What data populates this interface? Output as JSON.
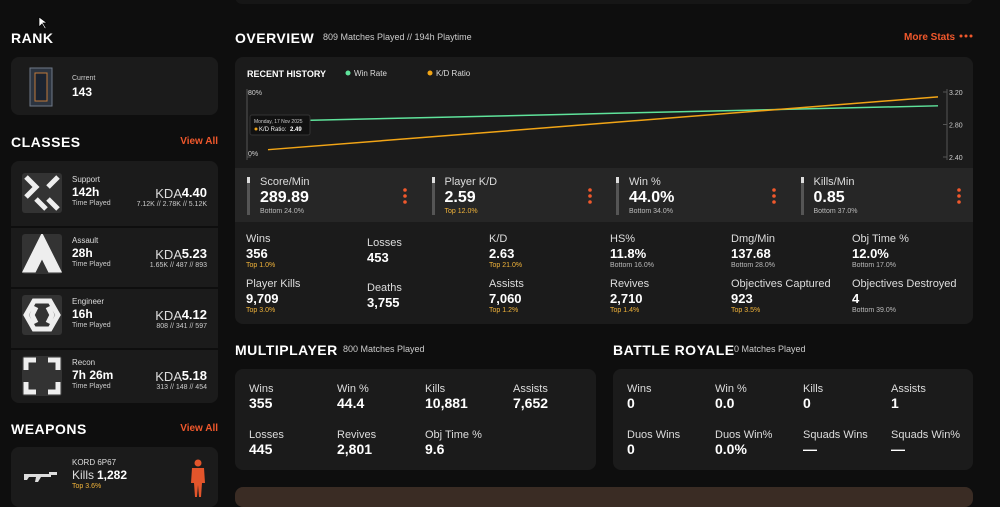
{
  "rank": {
    "title": "RANK",
    "label": "Current",
    "value": "143"
  },
  "classes": {
    "title": "CLASSES",
    "view_all": "View All",
    "items": [
      {
        "name": "Support",
        "time": "142h",
        "time_label": "Time Played",
        "kda_label": "KDA",
        "kda": "4.40",
        "breakdown": "7.12K // 2.78K // 5.12K"
      },
      {
        "name": "Assault",
        "time": "28h",
        "time_label": "Time Played",
        "kda_label": "KDA",
        "kda": "5.23",
        "breakdown": "1.65K // 487 // 893"
      },
      {
        "name": "Engineer",
        "time": "16h",
        "time_label": "Time Played",
        "kda_label": "KDA",
        "kda": "4.12",
        "breakdown": "808 // 341 // 597"
      },
      {
        "name": "Recon",
        "time": "7h 26m",
        "time_label": "Time Played",
        "kda_label": "KDA",
        "kda": "5.18",
        "breakdown": "313 // 148 // 454"
      }
    ]
  },
  "weapons": {
    "title": "WEAPONS",
    "view_all": "View All",
    "items": [
      {
        "name": "KORD 6P67",
        "stat_label": "Kills",
        "stat": "1,282",
        "rank": "Top 3.6%"
      }
    ]
  },
  "overview": {
    "title": "OVERVIEW",
    "subtitle": "809 Matches Played // 194h Playtime",
    "more": "More Stats"
  },
  "recent_history": {
    "title": "RECENT HISTORY",
    "ylim": [
      0,
      80
    ],
    "yticks": [
      {
        "value": 0,
        "label": "0%"
      },
      {
        "value": 80,
        "label": "80%"
      }
    ],
    "y2lim": [
      2.4,
      3.2
    ],
    "y2ticks": [
      {
        "value": 2.4,
        "label": "2.40"
      },
      {
        "value": 2.8,
        "label": "2.80"
      },
      {
        "value": 3.2,
        "label": "3.20"
      }
    ],
    "series": [
      {
        "name": "Win Rate",
        "color": "#5fe39b",
        "values": [
          44,
          63
        ]
      },
      {
        "name": "K/D Ratio",
        "color": "#f2a516",
        "axis": "y2",
        "values": [
          2.49,
          3.14
        ]
      }
    ],
    "tooltip": {
      "date": "Monday, 17 Nov 2025",
      "label": "K/D Ratio:",
      "value": 2.49
    }
  },
  "highlights": [
    {
      "label": "Score/Min",
      "value": "289.89",
      "rank": "Bottom 24.0%"
    },
    {
      "label": "Player K/D",
      "value": "2.59",
      "rank": "Top 12.0%"
    },
    {
      "label": "Win %",
      "value": "44.0%",
      "rank": "Bottom 34.0%"
    },
    {
      "label": "Kills/Min",
      "value": "0.85",
      "rank": "Bottom 37.0%"
    }
  ],
  "stats": [
    {
      "label": "Wins",
      "value": "356",
      "rank": "Top 1.0%"
    },
    {
      "label": "Losses",
      "value": "453"
    },
    {
      "label": "K/D",
      "value": "2.63",
      "rank": "Top 21.0%"
    },
    {
      "label": "HS%",
      "value": "11.8%",
      "rank": "Bottom 16.0%"
    },
    {
      "label": "Dmg/Min",
      "value": "137.68",
      "rank": "Bottom 28.0%"
    },
    {
      "label": "Obj Time %",
      "value": "12.0%",
      "rank": "Bottom 17.0%"
    },
    {
      "label": "Player Kills",
      "value": "9,709",
      "rank": "Top 3.0%"
    },
    {
      "label": "Deaths",
      "value": "3,755"
    },
    {
      "label": "Assists",
      "value": "7,060",
      "rank": "Top 1.2%"
    },
    {
      "label": "Revives",
      "value": "2,710",
      "rank": "Top 1.4%"
    },
    {
      "label": "Objectives Captured",
      "value": "923",
      "rank": "Top 3.5%"
    },
    {
      "label": "Objectives Destroyed",
      "value": "4",
      "rank": "Bottom 39.0%"
    }
  ],
  "multiplayer": {
    "title": "MULTIPLAYER",
    "subtitle": "800 Matches Played",
    "stats": [
      {
        "label": "Wins",
        "value": "355"
      },
      {
        "label": "Win %",
        "value": "44.4"
      },
      {
        "label": "Kills",
        "value": "10,881"
      },
      {
        "label": "Assists",
        "value": "7,652"
      },
      {
        "label": "Losses",
        "value": "445"
      },
      {
        "label": "Revives",
        "value": "2,801"
      },
      {
        "label": "Obj Time %",
        "value": "9.6"
      }
    ]
  },
  "battle_royale": {
    "title": "BATTLE ROYALE",
    "subtitle": "0 Matches Played",
    "stats": [
      {
        "label": "Wins",
        "value": "0"
      },
      {
        "label": "Win %",
        "value": "0.0"
      },
      {
        "label": "Kills",
        "value": "0"
      },
      {
        "label": "Assists",
        "value": "1"
      },
      {
        "label": "Duos Wins",
        "value": "0"
      },
      {
        "label": "Duos Win%",
        "value": "0.0%"
      },
      {
        "label": "Squads Wins",
        "value": "—"
      },
      {
        "label": "Squads Win%",
        "value": "—"
      }
    ]
  }
}
